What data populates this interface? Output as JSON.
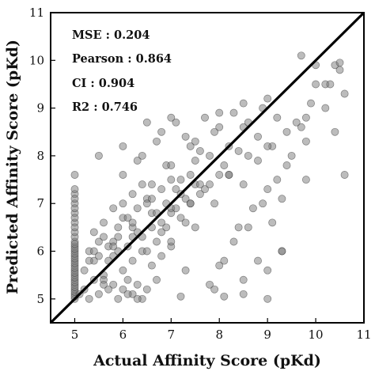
{
  "chart_data": {
    "type": "scatter",
    "xlabel": "Actual Affinity Score (pKd)",
    "ylabel": "Predicted Affinity Score (pKd)",
    "xlim": [
      4.5,
      11
    ],
    "ylim": [
      4.5,
      11
    ],
    "xticks": [
      "5",
      "6",
      "7",
      "8",
      "9",
      "10",
      "11"
    ],
    "yticks": [
      "5",
      "6",
      "7",
      "8",
      "9",
      "10",
      "11"
    ],
    "grid": false,
    "reference_line": "y = x",
    "annotations": [
      {
        "label": "MSE : 0.204"
      },
      {
        "label": "Pearson : 0.864"
      },
      {
        "label": "CI : 0.904"
      },
      {
        "label": "R2 : 0.746"
      }
    ],
    "series": [
      {
        "x": [
          5.0,
          5.0,
          5.0,
          5.0,
          5.0,
          5.0,
          5.0,
          5.0,
          5.0,
          5.0,
          5.0,
          5.0,
          5.0,
          5.0,
          5.0,
          5.0,
          5.0,
          5.0,
          5.0,
          5.0,
          5.0,
          5.0,
          5.0,
          5.0,
          5.0,
          5.0,
          5.0,
          5.0,
          5.0,
          5.0,
          5.0,
          5.0,
          5.1,
          5.2,
          5.3,
          5.4,
          5.5,
          5.6,
          5.7,
          5.8,
          5.9,
          6.0,
          6.1,
          6.2,
          6.3,
          6.4,
          6.5,
          5.2,
          5.4,
          5.6,
          5.8,
          6.0,
          6.2,
          6.4,
          6.6,
          6.8,
          7.0,
          5.3,
          5.5,
          5.7,
          5.9,
          6.1,
          6.3,
          6.5,
          6.7,
          6.9,
          5.4,
          5.6,
          5.8,
          6.0,
          6.2,
          6.4,
          6.6,
          6.8,
          7.0,
          7.2,
          5.5,
          5.7,
          5.9,
          6.1,
          6.3,
          6.5,
          6.7,
          6.9,
          7.1,
          7.3,
          7.5,
          5.6,
          5.8,
          6.0,
          6.2,
          6.4,
          6.6,
          6.8,
          7.0,
          7.2,
          7.4,
          7.6,
          5.3,
          5.6,
          5.9,
          6.2,
          6.5,
          6.8,
          7.1,
          7.4,
          7.7,
          8.0,
          6.0,
          6.3,
          6.6,
          6.9,
          7.2,
          7.5,
          7.8,
          8.1,
          8.4,
          6.4,
          6.7,
          7.0,
          7.3,
          7.6,
          7.9,
          8.2,
          8.5,
          8.8,
          6.8,
          7.1,
          7.4,
          7.7,
          8.0,
          8.3,
          8.6,
          8.9,
          9.2,
          7.0,
          7.3,
          7.6,
          7.9,
          8.2,
          8.5,
          8.8,
          9.1,
          7.5,
          7.8,
          8.1,
          8.4,
          8.7,
          9.0,
          9.3,
          8.0,
          8.3,
          8.6,
          8.9,
          9.2,
          9.5,
          9.8,
          8.5,
          8.8,
          9.1,
          9.4,
          9.7,
          10.0,
          9.0,
          9.3,
          9.6,
          9.9,
          10.2,
          10.5,
          9.7,
          10.0,
          10.3,
          10.4,
          10.5,
          10.6,
          5.4,
          5.8,
          6.2,
          6.6,
          7.0,
          7.4,
          7.8,
          8.2,
          8.6,
          9.0,
          9.4,
          9.8,
          10.2,
          6.0,
          6.5,
          7.0,
          7.5,
          8.0,
          8.5,
          9.0,
          5.5,
          6.1,
          6.7,
          7.3,
          7.9,
          8.5,
          6.3,
          7.2,
          8.1,
          9.0,
          9.3,
          9.8,
          10.4,
          10.6,
          5.0,
          5.0,
          5.0,
          5.0,
          5.0
        ],
        "y": [
          5.0,
          5.1,
          5.2,
          5.3,
          5.4,
          5.5,
          5.6,
          5.7,
          5.8,
          5.9,
          6.0,
          6.1,
          6.2,
          6.3,
          6.4,
          6.6,
          6.8,
          7.0,
          7.2,
          7.6,
          5.05,
          5.15,
          5.25,
          5.35,
          5.45,
          5.55,
          5.65,
          5.75,
          5.85,
          5.95,
          6.05,
          6.15,
          5.1,
          5.2,
          5.0,
          5.4,
          5.1,
          5.5,
          5.2,
          5.3,
          5.0,
          5.2,
          5.4,
          5.1,
          5.3,
          5.0,
          5.2,
          5.6,
          5.8,
          5.4,
          5.9,
          5.6,
          5.8,
          6.0,
          5.7,
          5.9,
          6.1,
          6.0,
          6.2,
          5.8,
          6.3,
          6.1,
          6.4,
          6.0,
          6.2,
          6.5,
          6.4,
          6.6,
          6.2,
          6.7,
          6.5,
          6.3,
          6.8,
          6.6,
          6.9,
          6.7,
          5.9,
          6.1,
          6.5,
          6.7,
          6.9,
          7.1,
          6.8,
          7.0,
          7.3,
          7.1,
          7.4,
          5.3,
          6.9,
          7.0,
          7.2,
          7.4,
          7.1,
          7.3,
          7.5,
          7.2,
          7.6,
          7.4,
          5.8,
          6.3,
          6.0,
          6.6,
          7.0,
          6.4,
          6.9,
          7.0,
          7.3,
          7.6,
          7.6,
          7.9,
          7.4,
          7.8,
          7.5,
          7.9,
          8.0,
          7.8,
          8.1,
          8.0,
          8.3,
          7.8,
          8.4,
          8.1,
          8.5,
          8.2,
          8.6,
          8.4,
          8.5,
          8.7,
          8.2,
          8.8,
          8.6,
          8.9,
          8.7,
          9.0,
          8.8,
          6.2,
          6.6,
          7.2,
          7.0,
          7.6,
          7.4,
          7.9,
          8.2,
          6.5,
          5.3,
          5.8,
          6.5,
          6.9,
          7.3,
          7.1,
          5.7,
          6.2,
          6.5,
          7.0,
          7.5,
          8.0,
          7.5,
          5.4,
          5.8,
          6.6,
          7.8,
          8.6,
          9.5,
          5.6,
          6.0,
          8.7,
          9.1,
          9.5,
          9.8,
          10.1,
          9.9,
          9.5,
          9.9,
          9.95,
          9.3,
          6.0,
          6.1,
          6.3,
          6.5,
          6.8,
          7.0,
          7.4,
          7.6,
          8.0,
          8.2,
          8.5,
          8.8,
          9.0,
          8.2,
          8.7,
          8.8,
          8.3,
          8.9,
          9.1,
          9.2,
          8.0,
          5.1,
          5.4,
          5.6,
          5.2,
          5.1,
          5.0,
          5.05,
          5.05,
          5.0,
          6.0,
          8.3,
          8.5,
          7.6,
          6.5,
          6.7,
          6.9,
          7.1,
          7.3
        ]
      }
    ]
  }
}
